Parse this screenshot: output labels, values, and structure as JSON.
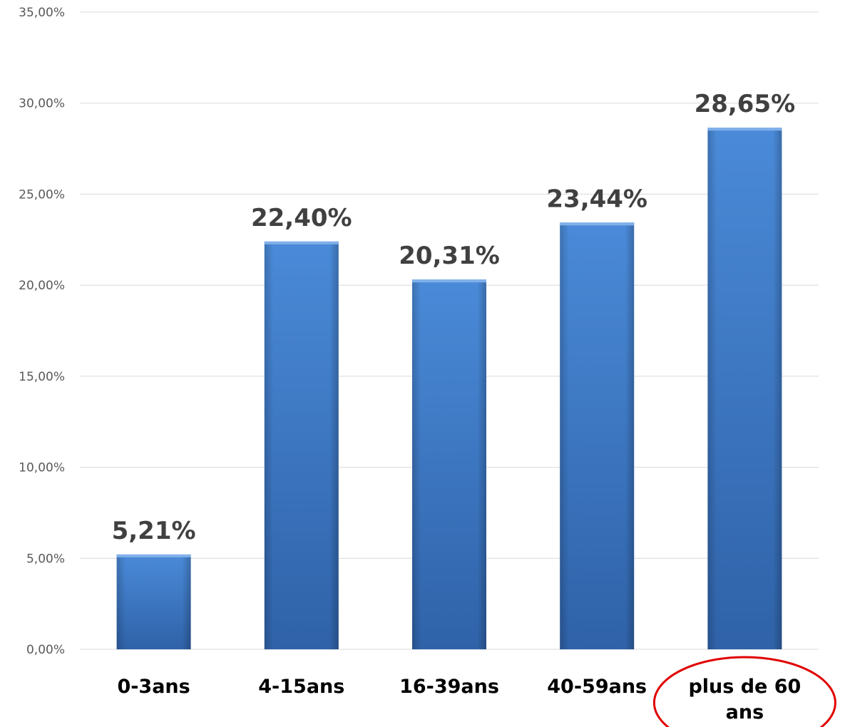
{
  "chart_data": {
    "type": "bar",
    "categories": [
      "0-3ans",
      "4-15ans",
      "16-39ans",
      "40-59ans",
      "plus de 60 ans"
    ],
    "category_lines": [
      [
        "0-3ans"
      ],
      [
        "4-15ans"
      ],
      [
        "16-39ans"
      ],
      [
        "40-59ans"
      ],
      [
        "plus de 60",
        "ans"
      ]
    ],
    "values": [
      5.21,
      22.4,
      20.31,
      23.44,
      28.65
    ],
    "data_labels": [
      "5,21%",
      "22,40%",
      "20,31%",
      "23,44%",
      "28,65%"
    ],
    "y_ticks": [
      0,
      5,
      10,
      15,
      20,
      25,
      30,
      35
    ],
    "y_tick_labels": [
      "0,00%",
      "5,00%",
      "10,00%",
      "15,00%",
      "20,00%",
      "25,00%",
      "30,00%",
      "35,00%"
    ],
    "ylim": [
      0,
      35
    ],
    "grid": true,
    "legend": "none",
    "highlighted_category": "plus de 60 ans",
    "colors": {
      "bar_light": "#4a8ad8",
      "bar_mid": "#3b78c6",
      "bar_dark": "#2f62a8",
      "grid": "#d9d9d9",
      "highlight_ellipse": "#e00000"
    }
  }
}
